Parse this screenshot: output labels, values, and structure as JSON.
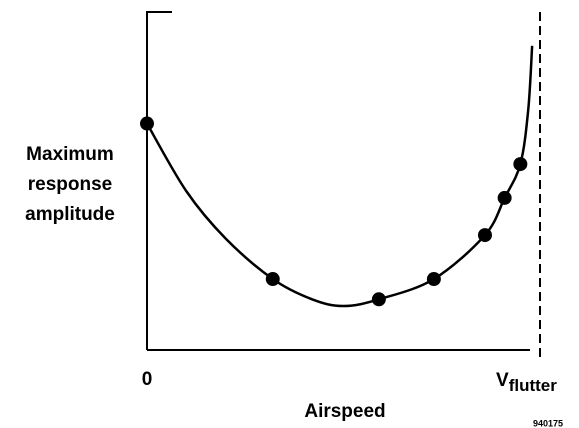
{
  "chart_data": {
    "type": "scatter",
    "ylabel": [
      "Maximum",
      "response",
      "amplitude"
    ],
    "xlabel": "Airspeed",
    "annotation": "940175",
    "xlim": [
      0,
      1
    ],
    "ylim": [
      0,
      1
    ],
    "xticks": [
      0,
      {
        "value": 1,
        "label": "V",
        "sub": "flutter"
      }
    ],
    "color": "#000000",
    "points": {
      "x": [
        0,
        0.32,
        0.59,
        0.73,
        0.86,
        0.91,
        0.95
      ],
      "y": [
        0.67,
        0.21,
        0.15,
        0.21,
        0.34,
        0.45,
        0.55
      ]
    },
    "curve": {
      "x": [
        0,
        0.1,
        0.2,
        0.32,
        0.42,
        0.5,
        0.59,
        0.73,
        0.86,
        0.91,
        0.95,
        0.97,
        0.98
      ],
      "y": [
        0.67,
        0.47,
        0.33,
        0.21,
        0.15,
        0.13,
        0.15,
        0.21,
        0.34,
        0.45,
        0.55,
        0.71,
        0.9
      ]
    }
  }
}
